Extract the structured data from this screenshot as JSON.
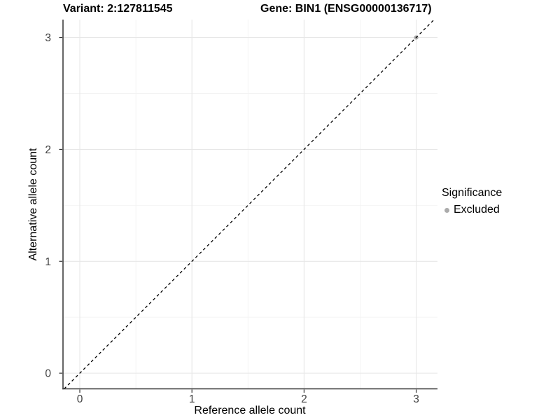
{
  "chart_data": {
    "type": "scatter",
    "title_left": "Variant: 2:127811545",
    "title_right": "Gene: BIN1 (ENSG00000136717)",
    "xlabel": "Reference allele count",
    "ylabel": "Alternative allele count",
    "xticks": [
      0,
      1,
      2,
      3
    ],
    "yticks": [
      0,
      1,
      2,
      3
    ],
    "x_minor": [
      0.5,
      1.5,
      2.5
    ],
    "y_minor": [
      0.5,
      1.5,
      2.5
    ],
    "xlim": [
      -0.15,
      3.19
    ],
    "ylim": [
      -0.14,
      3.16
    ],
    "grid": true,
    "legend_position": "right",
    "points": [
      {
        "x": 3,
        "y": 3,
        "series": "Excluded"
      }
    ],
    "abline": {
      "slope": 1,
      "intercept": 0,
      "style": "dashed"
    },
    "legend": {
      "title": "Significance",
      "items": [
        {
          "label": "Excluded",
          "color": "#ababab"
        }
      ]
    },
    "colors": {
      "major_grid": "#e7e7e7",
      "minor_grid": "#f3f3f3",
      "axis": "#333333",
      "tick_label": "#404040",
      "point": "#ababab",
      "abline": "#000000",
      "background": "#ffffff"
    }
  }
}
